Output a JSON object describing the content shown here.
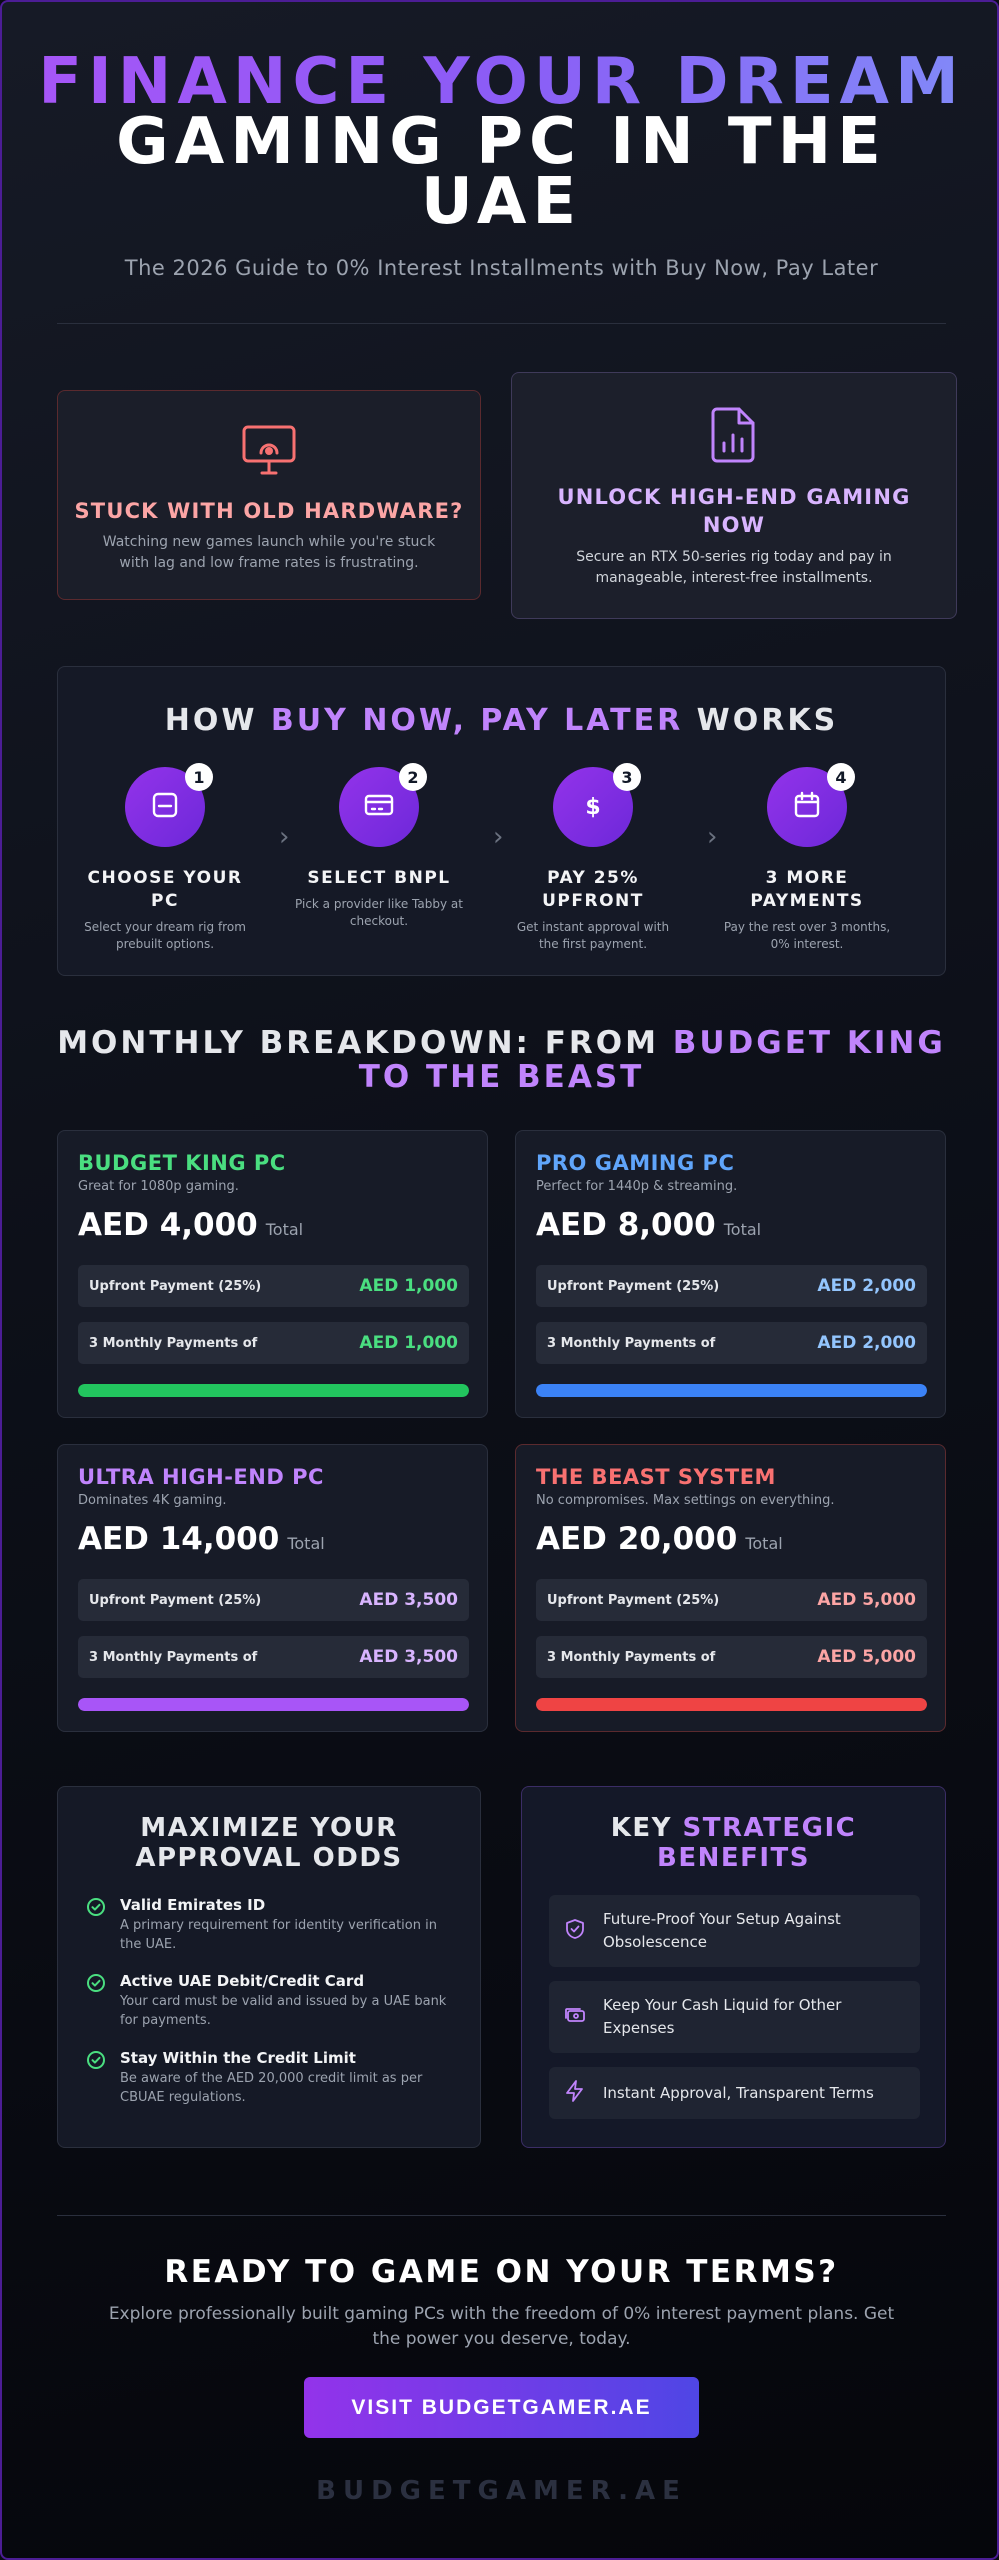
{
  "hero": {
    "title_line1": "FINANCE YOUR DREAM",
    "title_line2": "GAMING PC IN THE",
    "title_line3": "UAE",
    "subtitle": "The 2026 Guide to 0% Interest Installments with Buy Now, Pay Later"
  },
  "problem": {
    "icon": "monitor-icon",
    "title": "STUCK WITH OLD HARDWARE?",
    "text": "Watching new games launch while you're stuck with lag and low frame rates is frustrating.",
    "accent": "#f87171"
  },
  "solution": {
    "icon": "file-chart-icon",
    "title": "UNLOCK HIGH-END GAMING NOW",
    "text": "Secure an RTX 50-series rig today and pay in manageable, interest-free installments.",
    "accent": "#c084fc"
  },
  "how": {
    "title_pre": "HOW ",
    "title_accent": "BUY NOW, PAY LATER",
    "title_post": " WORKS",
    "steps": [
      {
        "num": "1",
        "icon": "card-icon",
        "title": "CHOOSE YOUR PC",
        "text": "Select your dream rig from prebuilt options."
      },
      {
        "num": "2",
        "icon": "credit-card-icon",
        "title": "SELECT BNPL",
        "text": "Pick a provider like Tabby at checkout."
      },
      {
        "num": "3",
        "icon": "dollar-icon",
        "title": "PAY 25% UPFRONT",
        "text": "Get instant approval with the first payment."
      },
      {
        "num": "4",
        "icon": "calendar-icon",
        "title": "3 MORE PAYMENTS",
        "text": "Pay the rest over 3 months, 0% interest."
      }
    ]
  },
  "breakdown": {
    "title_pre": "MONTHLY BREAKDOWN: FROM ",
    "title_accent1": "BUDGET KING",
    "title_accent2": "TO THE BEAST",
    "plans": [
      {
        "name": "BUDGET KING PC",
        "desc": "Great for 1080p gaming.",
        "total": "AED 4,000",
        "total_label": "Total",
        "upfront_label": "Upfront Payment (25%)",
        "upfront": "AED 1,000",
        "monthly_label": "3 Monthly Payments of",
        "monthly": "AED 1,000",
        "color": "#4ade80",
        "bar_color": "#22c55e",
        "bar_fill": 1.0
      },
      {
        "name": "PRO GAMING PC",
        "desc": "Perfect for 1440p & streaming.",
        "total": "AED 8,000",
        "total_label": "Total",
        "upfront_label": "Upfront Payment (25%)",
        "upfront": "AED 2,000",
        "monthly_label": "3 Monthly Payments of",
        "monthly": "AED 2,000",
        "color": "#60a5fa",
        "val_color": "#93c5fd",
        "bar_color": "#3b82f6",
        "bar_fill": 1.0
      },
      {
        "name": "ULTRA HIGH-END PC",
        "desc": "Dominates 4K gaming.",
        "total": "AED 14,000",
        "total_label": "Total",
        "upfront_label": "Upfront Payment (25%)",
        "upfront": "AED 3,500",
        "monthly_label": "3 Monthly Payments of",
        "monthly": "AED 3,500",
        "color": "#c084fc",
        "val_color": "#d8b4fe",
        "bar_color": "#a855f7",
        "bar_fill": 1.0
      },
      {
        "name": "THE BEAST SYSTEM",
        "desc": "No compromises. Max settings on everything.",
        "total": "AED 20,000",
        "total_label": "Total",
        "upfront_label": "Upfront Payment (25%)",
        "upfront": "AED 5,000",
        "monthly_label": "3 Monthly Payments of",
        "monthly": "AED 5,000",
        "color": "#f87171",
        "val_color": "#fca5a5",
        "bar_color": "#ef4444",
        "bar_fill": 1.0
      }
    ]
  },
  "approval": {
    "title": "MAXIMIZE YOUR APPROVAL ODDS",
    "items": [
      {
        "title": "Valid Emirates ID",
        "text": "A primary requirement for identity verification in the UAE."
      },
      {
        "title": "Active UAE Debit/Credit Card",
        "text": "Your card must be valid and issued by a UAE bank for payments."
      },
      {
        "title": "Stay Within the Credit Limit",
        "text": "Be aware of the AED 20,000 credit limit as per CBUAE regulations."
      }
    ]
  },
  "benefits": {
    "title_pre": "KEY ",
    "title_accent": "STRATEGIC BENEFITS",
    "items": [
      {
        "icon": "shield-check-icon",
        "text": "Future-Proof Your Setup Against Obsolescence"
      },
      {
        "icon": "cash-icon",
        "text": "Keep Your Cash Liquid for Other Expenses"
      },
      {
        "icon": "lightning-icon",
        "text": "Instant Approval, Transparent Terms"
      }
    ]
  },
  "cta": {
    "title": "READY TO GAME ON YOUR TERMS?",
    "text": "Explore professionally built gaming PCs with the freedom of 0% interest payment plans. Get the power you deserve, today.",
    "button": "VISIT BUDGETGAMER.AE",
    "brand": "BUDGETGAMER.AE"
  }
}
